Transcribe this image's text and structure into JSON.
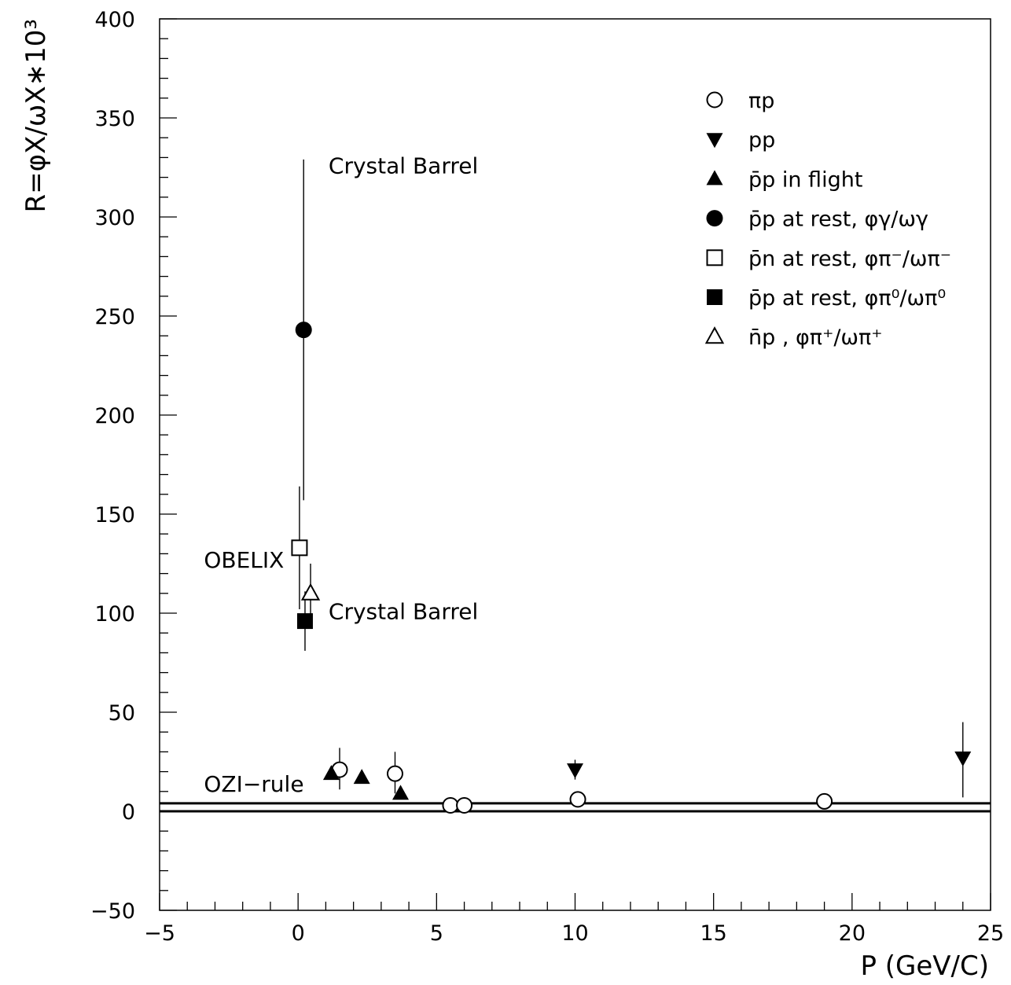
{
  "chart_data": {
    "type": "scatter",
    "xlabel": "P (GeV/C)",
    "ylabel": "R=φX/ωX∗10³",
    "xlim": [
      -5,
      25
    ],
    "ylim": [
      -50,
      400
    ],
    "xticks": [
      -5,
      0,
      5,
      10,
      15,
      20,
      25
    ],
    "xtick_labels": [
      "−5",
      "0",
      "5",
      "10",
      "15",
      "20",
      "25"
    ],
    "yticks": [
      -50,
      0,
      50,
      100,
      150,
      200,
      250,
      300,
      350,
      400
    ],
    "ytick_labels": [
      "−50",
      "0",
      "50",
      "100",
      "150",
      "200",
      "250",
      "300",
      "350",
      "400"
    ],
    "x_minor_step": 1,
    "y_minor_step": 10,
    "grid": false,
    "legend_position": "top-right",
    "series": [
      {
        "name": "πp",
        "marker": "circle-open",
        "points": [
          {
            "x": 1.5,
            "y": 21,
            "ylo": 11,
            "yhi": 32
          },
          {
            "x": 3.5,
            "y": 19,
            "ylo": 9,
            "yhi": 30
          },
          {
            "x": 5.5,
            "y": 3
          },
          {
            "x": 6.0,
            "y": 3
          },
          {
            "x": 10.1,
            "y": 6
          },
          {
            "x": 19.0,
            "y": 5
          }
        ]
      },
      {
        "name": "pp",
        "marker": "triangle-down-filled",
        "points": [
          {
            "x": 10.0,
            "y": 21,
            "ylo": 16,
            "yhi": 26
          },
          {
            "x": 24.0,
            "y": 27,
            "ylo": 7,
            "yhi": 45
          }
        ]
      },
      {
        "name": "p̄p in flight",
        "marker": "triangle-up-filled",
        "points": [
          {
            "x": 1.2,
            "y": 19
          },
          {
            "x": 2.3,
            "y": 17
          },
          {
            "x": 3.7,
            "y": 9
          }
        ]
      },
      {
        "name": "p̄p at rest, φγ/ωγ",
        "marker": "circle-filled",
        "points": [
          {
            "x": 0.2,
            "y": 243,
            "ylo": 157,
            "yhi": 329
          }
        ]
      },
      {
        "name": "p̄n at rest, φπ⁻/ωπ⁻",
        "marker": "square-open",
        "points": [
          {
            "x": 0.05,
            "y": 133,
            "ylo": 102,
            "yhi": 164
          }
        ]
      },
      {
        "name": "p̄p at rest, φπ⁰/ωπ⁰",
        "marker": "square-filled",
        "points": [
          {
            "x": 0.25,
            "y": 96,
            "ylo": 81,
            "yhi": 111
          }
        ]
      },
      {
        "name": "n̄p , φπ⁺/ωπ⁺",
        "marker": "triangle-up-open",
        "points": [
          {
            "x": 0.45,
            "y": 110,
            "ylo": 95,
            "yhi": 125
          }
        ]
      }
    ],
    "hlines": [
      {
        "y": 0
      },
      {
        "y": 4
      }
    ],
    "annotations": [
      {
        "text": "Crystal Barrel",
        "x": 1.1,
        "y": 322
      },
      {
        "text": "OBELIX",
        "x": -3.4,
        "y": 123
      },
      {
        "text": "Crystal Barrel",
        "x": 1.1,
        "y": 97
      },
      {
        "text": "OZI−rule",
        "x": -3.4,
        "y": 10
      }
    ]
  }
}
